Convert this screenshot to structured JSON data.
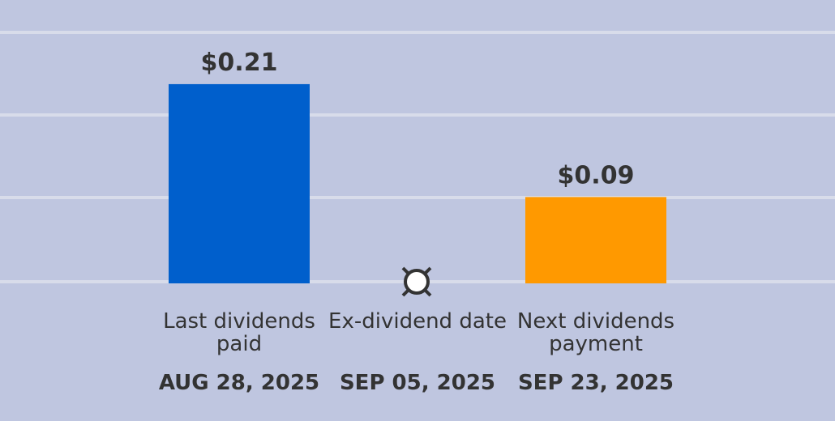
{
  "chart_data": {
    "type": "bar",
    "categories": [
      "Last dividends paid",
      "Ex-dividend date",
      "Next dividends payment"
    ],
    "dates": [
      "AUG 28, 2025",
      "SEP 05, 2025",
      "SEP 23, 2025"
    ],
    "values": [
      0.21,
      null,
      0.09
    ],
    "value_labels": [
      "$0.21",
      null,
      "$0.09"
    ],
    "colors": [
      "#005fcc",
      null,
      "#ff9900"
    ],
    "ylim": [
      0,
      0.265
    ]
  }
}
